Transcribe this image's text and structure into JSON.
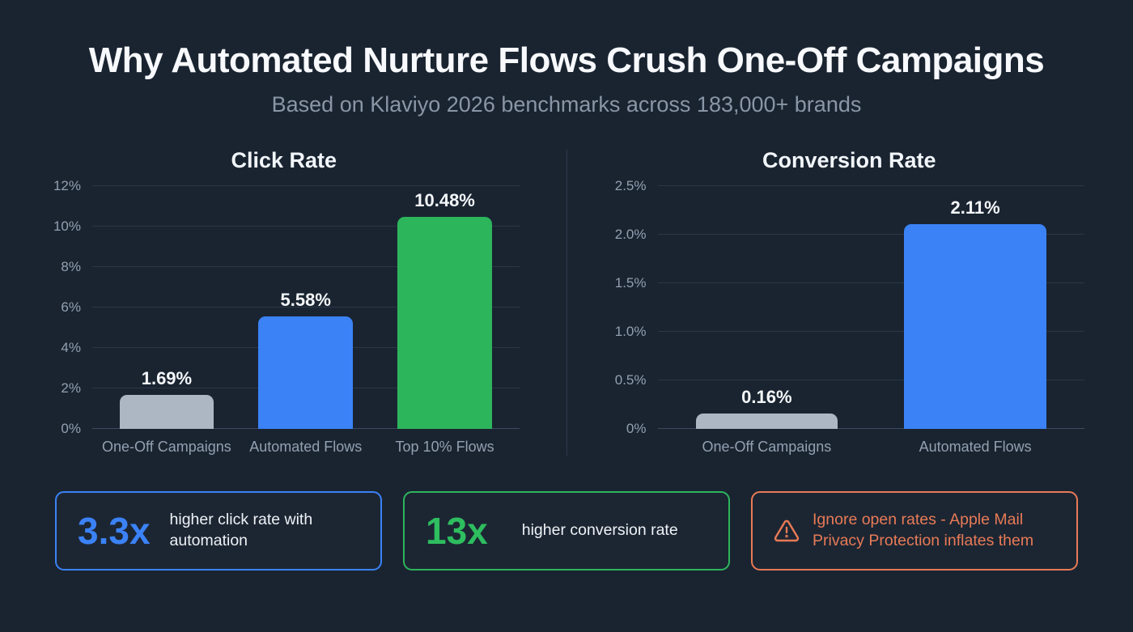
{
  "page": {
    "title": "Why Automated Nurture Flows Crush One-Off Campaigns",
    "subtitle": "Based on Klaviyo 2026 benchmarks across 183,000+ brands"
  },
  "chart_data": [
    {
      "type": "bar",
      "title": "Click Rate",
      "categories": [
        "One-Off Campaigns",
        "Automated Flows",
        "Top 10% Flows"
      ],
      "values": [
        1.69,
        5.58,
        10.48
      ],
      "value_labels": [
        "1.69%",
        "5.58%",
        "10.48%"
      ],
      "bar_colors": [
        "#adb6c3",
        "#3b82f6",
        "#2db55c"
      ],
      "xlabel": "",
      "ylabel": "",
      "ylim": [
        0,
        12
      ],
      "yticks": [
        0,
        2,
        4,
        6,
        8,
        10,
        12
      ],
      "ytick_labels": [
        "0%",
        "2%",
        "4%",
        "6%",
        "8%",
        "10%",
        "12%"
      ],
      "grid": true,
      "legend": "none"
    },
    {
      "type": "bar",
      "title": "Conversion Rate",
      "categories": [
        "One-Off Campaigns",
        "Automated Flows"
      ],
      "values": [
        0.16,
        2.11
      ],
      "value_labels": [
        "0.16%",
        "2.11%"
      ],
      "bar_colors": [
        "#adb6c3",
        "#3b82f6"
      ],
      "xlabel": "",
      "ylabel": "",
      "ylim": [
        0,
        2.5
      ],
      "yticks": [
        0,
        0.5,
        1.0,
        1.5,
        2.0,
        2.5
      ],
      "ytick_labels": [
        "0%",
        "0.5%",
        "1.0%",
        "1.5%",
        "2.0%",
        "2.5%"
      ],
      "grid": true,
      "legend": "none"
    }
  ],
  "callouts": [
    {
      "stat": "3.3x",
      "text": "higher click rate with automation",
      "accent": "#3b82f6",
      "border": "#3b82f6",
      "text_color": "#eef2f6"
    },
    {
      "stat": "13x",
      "text": "higher conversion rate",
      "accent": "#2ebd5f",
      "border": "#2db55c",
      "text_color": "#eef2f6"
    },
    {
      "stat": "",
      "icon": "warning-icon",
      "text": "Ignore open rates - Apple Mail Privacy Protection inflates them",
      "accent": "#e87a56",
      "border": "#e87a56",
      "text_color": "#e87a56"
    }
  ],
  "colors": {
    "background": "#1a2431",
    "gridline": "#2a3648",
    "axis_text": "#93a0b0",
    "bar_gray": "#adb6c3",
    "bar_blue": "#3b82f6",
    "bar_green": "#2db55c",
    "warning_orange": "#e87a56"
  }
}
